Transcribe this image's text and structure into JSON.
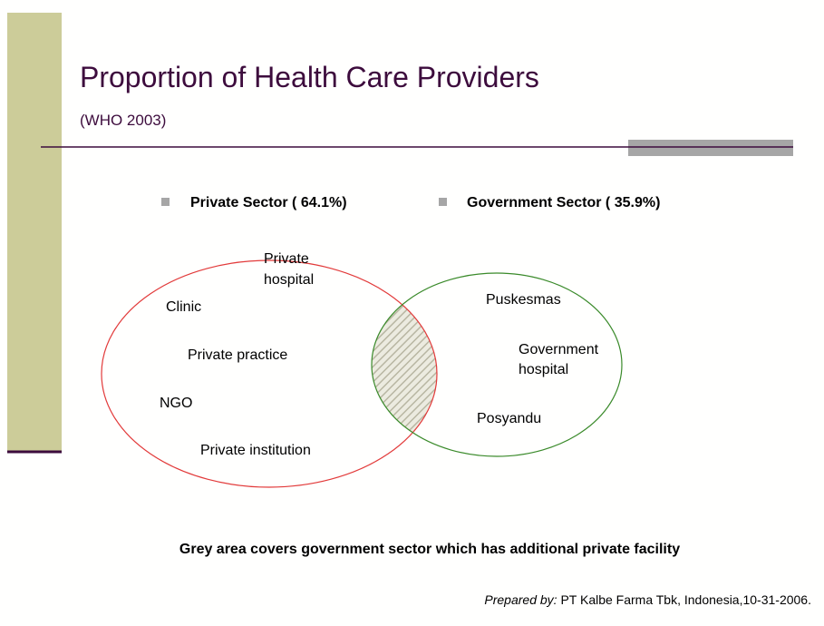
{
  "header": {
    "title": "Proportion of Health Care Providers",
    "subtitle": "(WHO 2003)"
  },
  "legend": [
    "Private Sector ( 64.1%)",
    "Government Sector ( 35.9%)"
  ],
  "private_sector": [
    [
      "Private",
      "hospital"
    ],
    [
      "Clinic"
    ],
    [
      "Private practice"
    ],
    [
      "NGO"
    ],
    [
      "Private institution"
    ]
  ],
  "government_sector": [
    [
      "Puskesmas"
    ],
    [
      "Government",
      "hospital"
    ],
    [
      "Posyandu"
    ]
  ],
  "caption": "Grey area covers government sector which has additional private facility",
  "footer": {
    "prefix": "Prepared by:",
    "text": " PT Kalbe Farma Tbk, Indonesia,10-31-2006."
  }
}
